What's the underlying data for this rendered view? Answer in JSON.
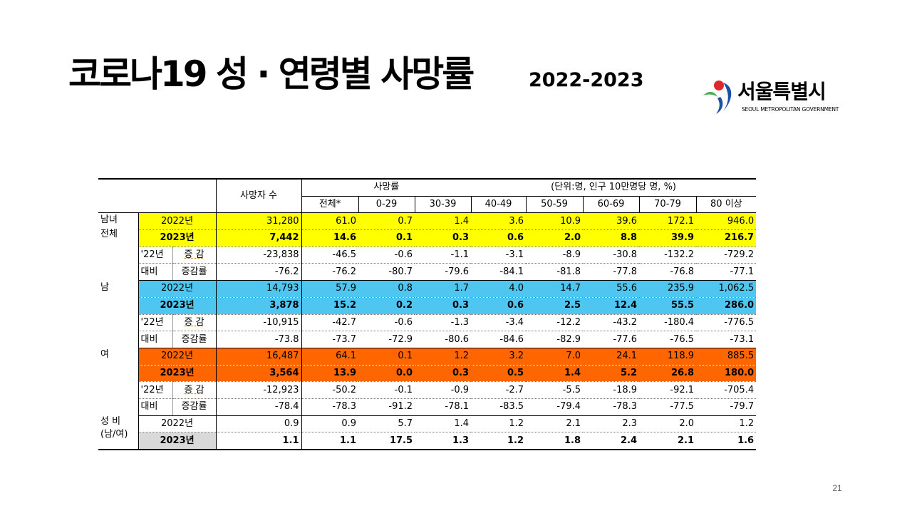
{
  "slide": {
    "title": "코로나19 성 · 연령별 사망률",
    "subtitle": "2022-2023",
    "page_number": "21",
    "logo": {
      "name": "서울특별시",
      "sub": "SEOUL METROPOLITAN GOVERNMENT"
    }
  },
  "table": {
    "header": {
      "deaths": "사망자 수",
      "rate": "사망률",
      "unit": "(단위:명, 인구 10만명당 명, %)",
      "columns": [
        "전체*",
        "0-29",
        "30-39",
        "40-49",
        "50-59",
        "60-69",
        "70-79",
        "80 이상"
      ]
    },
    "groups": {
      "total_label_1": "남녀",
      "total_label_2": "전체",
      "male": "남",
      "female": "여",
      "ratio_label_1": "성 비",
      "ratio_label_2": "(남/여)"
    },
    "labels": {
      "year_2022": "2022년",
      "year_2023": "2023년",
      "vs22": "'22년",
      "compare": "대비",
      "change": "증 감",
      "change_rate": "증감률"
    },
    "total": {
      "y2022": [
        "31,280",
        "61.0",
        "0.7",
        "1.4",
        "3.6",
        "10.9",
        "39.6",
        "172.1",
        "946.0"
      ],
      "y2023": [
        "7,442",
        "14.6",
        "0.1",
        "0.3",
        "0.6",
        "2.0",
        "8.8",
        "39.9",
        "216.7"
      ],
      "change": [
        "-23,838",
        "-46.5",
        "-0.6",
        "-1.1",
        "-3.1",
        "-8.9",
        "-30.8",
        "-132.2",
        "-729.2"
      ],
      "rate": [
        "-76.2",
        "-76.2",
        "-80.7",
        "-79.6",
        "-84.1",
        "-81.8",
        "-77.8",
        "-76.8",
        "-77.1"
      ]
    },
    "male": {
      "y2022": [
        "14,793",
        "57.9",
        "0.8",
        "1.7",
        "4.0",
        "14.7",
        "55.6",
        "235.9",
        "1,062.5"
      ],
      "y2023": [
        "3,878",
        "15.2",
        "0.2",
        "0.3",
        "0.6",
        "2.5",
        "12.4",
        "55.5",
        "286.0"
      ],
      "change": [
        "-10,915",
        "-42.7",
        "-0.6",
        "-1.3",
        "-3.4",
        "-12.2",
        "-43.2",
        "-180.4",
        "-776.5"
      ],
      "rate": [
        "-73.8",
        "-73.7",
        "-72.9",
        "-80.6",
        "-84.6",
        "-82.9",
        "-77.6",
        "-76.5",
        "-73.1"
      ]
    },
    "female": {
      "y2022": [
        "16,487",
        "64.1",
        "0.1",
        "1.2",
        "3.2",
        "7.0",
        "24.1",
        "118.9",
        "885.5"
      ],
      "y2023": [
        "3,564",
        "13.9",
        "0.0",
        "0.3",
        "0.5",
        "1.4",
        "5.2",
        "26.8",
        "180.0"
      ],
      "change": [
        "-12,923",
        "-50.2",
        "-0.1",
        "-0.9",
        "-2.7",
        "-5.5",
        "-18.9",
        "-92.1",
        "-705.4"
      ],
      "rate": [
        "-78.4",
        "-78.3",
        "-91.2",
        "-78.1",
        "-83.5",
        "-79.4",
        "-78.3",
        "-77.5",
        "-79.7"
      ]
    },
    "ratio": {
      "y2022": [
        "0.9",
        "0.9",
        "5.7",
        "1.4",
        "1.2",
        "2.1",
        "2.3",
        "2.0",
        "1.2"
      ],
      "y2023": [
        "1.1",
        "1.1",
        "17.5",
        "1.3",
        "1.2",
        "1.8",
        "2.4",
        "2.1",
        "1.6"
      ]
    }
  },
  "colors": {
    "total": "#ffff00",
    "male": "#4fc6ef",
    "female": "#ff6600",
    "ratio_2023": "#d9d9d9"
  }
}
